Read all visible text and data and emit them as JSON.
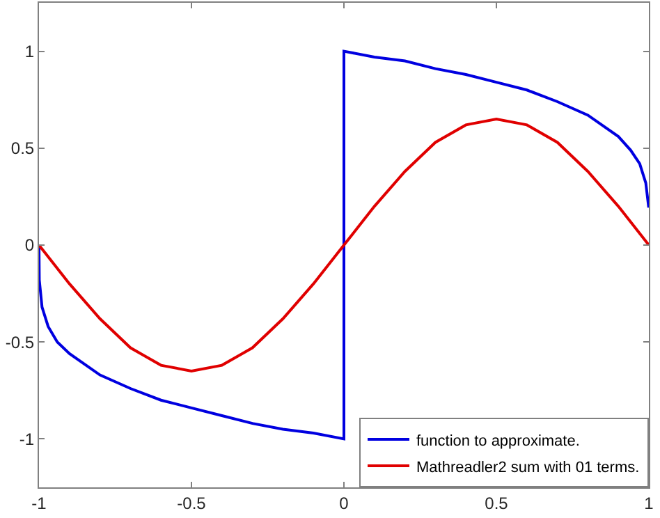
{
  "chart_data": {
    "type": "line",
    "xlim": [
      -1,
      1
    ],
    "ylim": [
      -1.25,
      1.25
    ],
    "xticks": [
      -1,
      -0.5,
      0,
      0.5,
      1
    ],
    "yticks": [
      -1,
      -0.5,
      0,
      0.5,
      1
    ],
    "legend": "bottom right",
    "marker": "none",
    "line_style": "solid",
    "series": [
      {
        "name": "function to approximate.",
        "color": "#0000e0",
        "x": [
          -1,
          -0.999,
          -0.99,
          -0.97,
          -0.94,
          -0.9,
          -0.8,
          -0.7,
          -0.6,
          -0.5,
          -0.4,
          -0.3,
          -0.2,
          -0.1,
          0,
          0,
          0.1,
          0.2,
          0.3,
          0.4,
          0.5,
          0.6,
          0.7,
          0.8,
          0.9,
          0.94,
          0.97,
          0.99,
          0.999,
          1
        ],
        "values": [
          0,
          -0.18,
          -0.32,
          -0.42,
          -0.5,
          -0.56,
          -0.67,
          -0.74,
          -0.8,
          -0.84,
          -0.88,
          -0.92,
          -0.95,
          -0.97,
          -1,
          1,
          0.97,
          0.95,
          0.91,
          0.88,
          0.84,
          0.8,
          0.74,
          0.67,
          0.56,
          0.49,
          0.42,
          0.32,
          0.2,
          0.2
        ]
      },
      {
        "name": "Mathreadler2 sum with 01 terms.",
        "color": "#e00000",
        "x": [
          -1,
          -0.9,
          -0.8,
          -0.7,
          -0.6,
          -0.5,
          -0.4,
          -0.3,
          -0.2,
          -0.1,
          0,
          0.1,
          0.2,
          0.3,
          0.4,
          0.5,
          0.6,
          0.7,
          0.8,
          0.9,
          1
        ],
        "values": [
          0,
          -0.2,
          -0.38,
          -0.53,
          -0.62,
          -0.65,
          -0.62,
          -0.53,
          -0.38,
          -0.2,
          0,
          0.2,
          0.38,
          0.53,
          0.62,
          0.65,
          0.62,
          0.53,
          0.38,
          0.2,
          0
        ]
      }
    ]
  }
}
